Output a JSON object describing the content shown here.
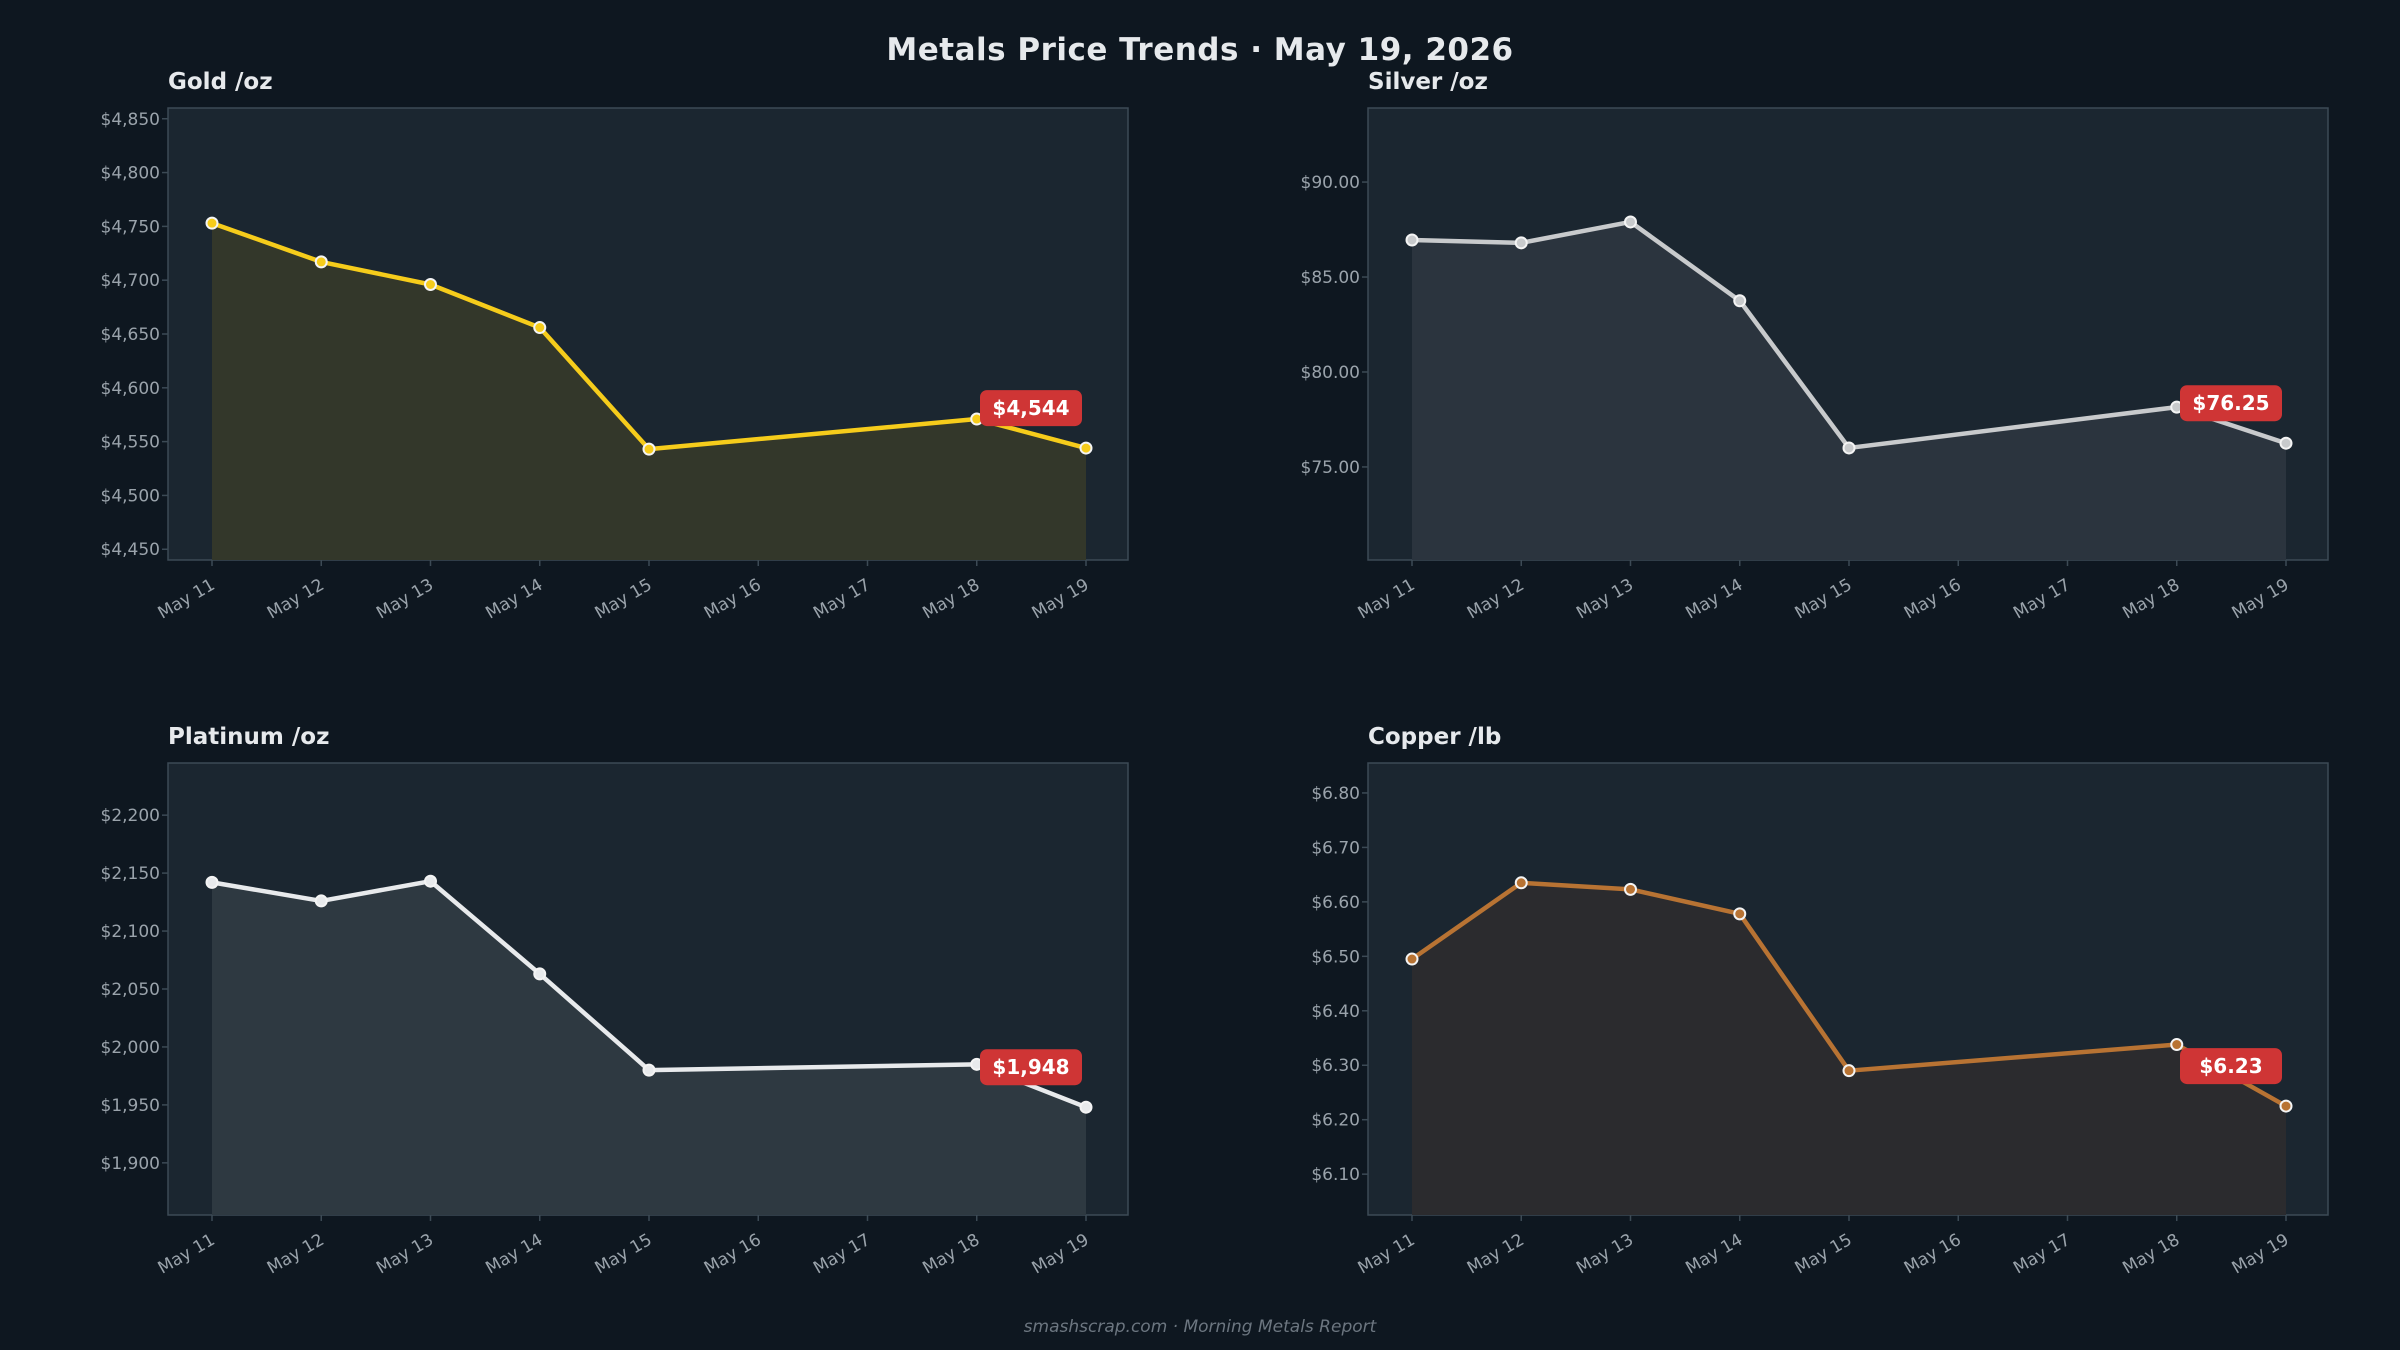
{
  "title": "Metals Price Trends  ·  May 19, 2026",
  "footer": "smashscrap.com  ·  Morning Metals Report",
  "chart_data": [
    {
      "type": "line",
      "title": "Gold  /oz",
      "categories": [
        "May 11",
        "May 12",
        "May 13",
        "May 14",
        "May 15",
        "May 16",
        "May 17",
        "May 18",
        "May 19"
      ],
      "x": [
        "May 11",
        "May 12",
        "May 13",
        "May 14",
        "May 15",
        "May 18",
        "May 19"
      ],
      "values": [
        4753,
        4717,
        4696,
        4656,
        4543,
        4571,
        4544
      ],
      "ylim": [
        4440,
        4860
      ],
      "yticks": [
        4450,
        4500,
        4550,
        4600,
        4650,
        4700,
        4750,
        4800,
        4850
      ],
      "tick_format": "$%s",
      "last_label": "$4,544",
      "color": "#f6cc1b",
      "fill": "#33372a",
      "grid": false
    },
    {
      "type": "line",
      "title": "Silver  /oz",
      "categories": [
        "May 11",
        "May 12",
        "May 13",
        "May 14",
        "May 15",
        "May 16",
        "May 17",
        "May 18",
        "May 19"
      ],
      "x": [
        "May 11",
        "May 12",
        "May 13",
        "May 14",
        "May 15",
        "May 18",
        "May 19"
      ],
      "values": [
        86.95,
        86.8,
        87.9,
        83.75,
        76.0,
        78.15,
        76.25
      ],
      "ylim": [
        70.1,
        93.9
      ],
      "yticks": [
        75,
        80,
        85,
        90
      ],
      "tick_format": "$%.2f",
      "last_label": "$76.25",
      "color": "#c8cacc",
      "fill": "#2b343e",
      "grid": false
    },
    {
      "type": "line",
      "title": "Platinum  /oz",
      "categories": [
        "May 11",
        "May 12",
        "May 13",
        "May 14",
        "May 15",
        "May 16",
        "May 17",
        "May 18",
        "May 19"
      ],
      "x": [
        "May 11",
        "May 12",
        "May 13",
        "May 14",
        "May 15",
        "May 18",
        "May 19"
      ],
      "values": [
        2142,
        2126,
        2143,
        2063,
        1980,
        1985,
        1948
      ],
      "ylim": [
        1855,
        2245
      ],
      "yticks": [
        1900,
        1950,
        2000,
        2050,
        2100,
        2150,
        2200
      ],
      "tick_format": "$%s",
      "last_label": "$1,948",
      "color": "#e8eaec",
      "fill": "#2e3941",
      "grid": false
    },
    {
      "type": "line",
      "title": "Copper  /lb",
      "categories": [
        "May 11",
        "May 12",
        "May 13",
        "May 14",
        "May 15",
        "May 16",
        "May 17",
        "May 18",
        "May 19"
      ],
      "x": [
        "May 11",
        "May 12",
        "May 13",
        "May 14",
        "May 15",
        "May 18",
        "May 19"
      ],
      "values": [
        6.495,
        6.635,
        6.623,
        6.578,
        6.29,
        6.338,
        6.225
      ],
      "ylim": [
        6.025,
        6.855
      ],
      "yticks": [
        6.1,
        6.2,
        6.3,
        6.4,
        6.5,
        6.6,
        6.7,
        6.8
      ],
      "tick_format": "$%.2f",
      "last_label": "$6.23",
      "color": "#b87333",
      "fill": "#2b2b2e",
      "grid": false
    }
  ]
}
